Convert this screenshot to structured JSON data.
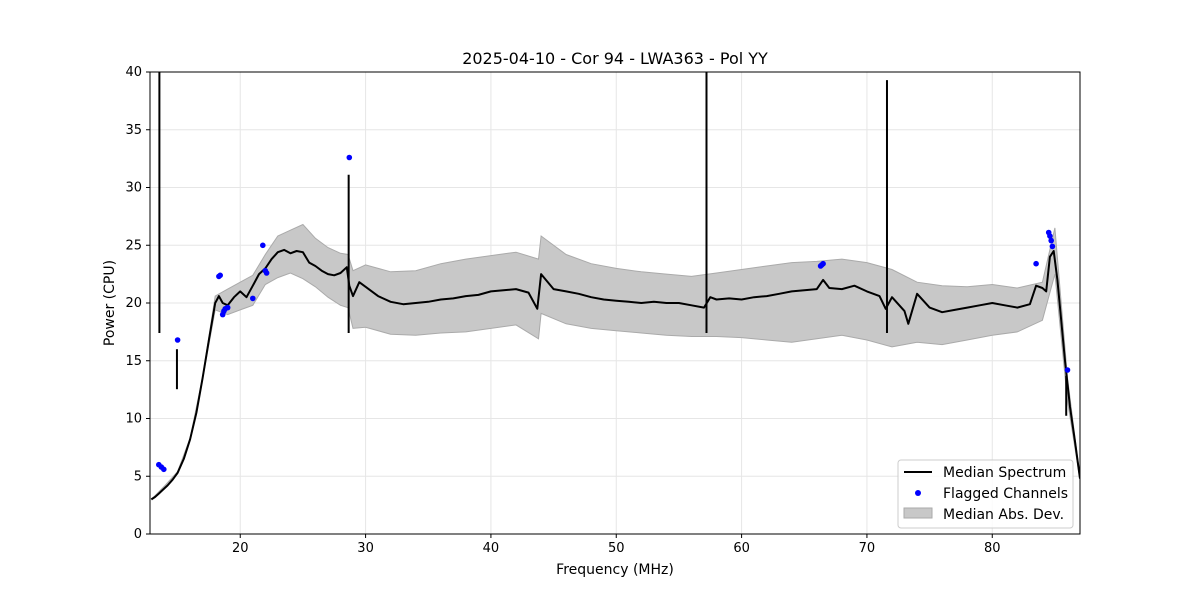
{
  "chart_data": {
    "type": "line",
    "title": "2025-04-10 - Cor 94 - LWA363 - Pol YY",
    "xlabel": "Frequency (MHz)",
    "ylabel": "Power (CPU)",
    "xlim": [
      12.8,
      87.0
    ],
    "ylim": [
      0,
      40
    ],
    "xticks": [
      20,
      30,
      40,
      50,
      60,
      70,
      80
    ],
    "yticks": [
      0,
      5,
      10,
      15,
      20,
      25,
      30,
      35,
      40
    ],
    "grid": true,
    "legend_position": "lower-right",
    "legend": [
      "Median Spectrum",
      "Flagged Channels",
      "Median Abs. Dev."
    ],
    "colors": {
      "median": "#000000",
      "flagged": "#0000ff",
      "mad_fill": "#c8c8c8",
      "mad_edge": "#aaaaaa",
      "grid": "#e6e6e6"
    },
    "series": [
      {
        "name": "Median Spectrum",
        "x": [
          12.9,
          13.2,
          13.5,
          13.8,
          14.2,
          14.6,
          15.0,
          15.5,
          16.0,
          16.5,
          17.0,
          17.5,
          18.0,
          18.3,
          18.6,
          19.0,
          19.5,
          20.0,
          20.5,
          21.0,
          21.5,
          22.0,
          22.5,
          23.0,
          23.5,
          24.0,
          24.5,
          25.0,
          25.5,
          26.0,
          26.5,
          27.0,
          27.5,
          28.0,
          28.5,
          28.7,
          29.0,
          29.5,
          30.0,
          31.0,
          32.0,
          33.0,
          34.0,
          35.0,
          36.0,
          37.0,
          38.0,
          39.0,
          40.0,
          41.0,
          42.0,
          43.0,
          43.7,
          44.0,
          45.0,
          46.0,
          47.0,
          48.0,
          49.0,
          50.0,
          51.0,
          52.0,
          53.0,
          54.0,
          55.0,
          56.0,
          57.0,
          57.5,
          58.0,
          59.0,
          60.0,
          61.0,
          62.0,
          63.0,
          64.0,
          65.0,
          66.0,
          66.5,
          67.0,
          68.0,
          69.0,
          70.0,
          71.0,
          71.5,
          72.0,
          73.0,
          73.3,
          74.0,
          75.0,
          76.0,
          77.0,
          78.0,
          79.0,
          80.0,
          81.0,
          82.0,
          83.0,
          83.5,
          84.0,
          84.3,
          84.6,
          84.9,
          85.2,
          85.5,
          85.8,
          86.2,
          86.6,
          87.0
        ],
        "y": [
          3.0,
          3.2,
          3.5,
          3.8,
          4.2,
          4.7,
          5.3,
          6.5,
          8.2,
          10.5,
          13.5,
          16.8,
          20.0,
          20.6,
          20.0,
          19.8,
          20.5,
          21.0,
          20.5,
          21.5,
          22.5,
          23.0,
          23.8,
          24.4,
          24.6,
          24.3,
          24.5,
          24.4,
          23.5,
          23.2,
          22.8,
          22.5,
          22.4,
          22.6,
          23.1,
          21.5,
          20.6,
          21.8,
          21.4,
          20.6,
          20.1,
          19.9,
          20.0,
          20.1,
          20.3,
          20.4,
          20.6,
          20.7,
          21.0,
          21.1,
          21.2,
          20.9,
          19.5,
          22.5,
          21.2,
          21.0,
          20.8,
          20.5,
          20.3,
          20.2,
          20.1,
          20.0,
          20.1,
          20.0,
          20.0,
          19.8,
          19.6,
          20.5,
          20.3,
          20.4,
          20.3,
          20.5,
          20.6,
          20.8,
          21.0,
          21.1,
          21.2,
          22.0,
          21.3,
          21.2,
          21.5,
          21.0,
          20.6,
          19.5,
          20.5,
          19.3,
          18.2,
          20.8,
          19.6,
          19.2,
          19.4,
          19.6,
          19.8,
          20.0,
          19.8,
          19.6,
          19.9,
          21.5,
          21.3,
          21.0,
          24.0,
          24.5,
          22.0,
          18.5,
          15.0,
          11.0,
          8.0,
          4.8
        ]
      },
      {
        "name": "Flagged Channels",
        "x": [
          13.5,
          13.7,
          13.9,
          15.0,
          18.3,
          18.4,
          18.6,
          18.7,
          18.8,
          19.0,
          21.0,
          21.8,
          22.0,
          22.1,
          28.7,
          66.3,
          66.4,
          66.5,
          83.5,
          84.5,
          84.6,
          84.7,
          84.8,
          86.0
        ],
        "y": [
          6.0,
          5.8,
          5.6,
          16.8,
          22.3,
          22.4,
          19.0,
          19.3,
          19.5,
          19.6,
          20.4,
          25.0,
          22.8,
          22.6,
          32.6,
          23.2,
          23.3,
          23.4,
          23.4,
          26.1,
          25.8,
          25.4,
          24.9,
          14.2
        ]
      }
    ],
    "mad_band": {
      "x": [
        13.0,
        14.0,
        15.0,
        16.0,
        17.0,
        18.0,
        19.0,
        20.0,
        21.0,
        22.0,
        23.0,
        24.0,
        25.0,
        26.0,
        27.0,
        28.0,
        28.6,
        29.0,
        30.0,
        32.0,
        34.0,
        36.0,
        38.0,
        40.0,
        42.0,
        43.8,
        44.0,
        46.0,
        48.0,
        50.0,
        52.0,
        54.0,
        56.0,
        58.0,
        60.0,
        62.0,
        64.0,
        66.0,
        68.0,
        70.0,
        72.0,
        74.0,
        76.0,
        78.0,
        80.0,
        82.0,
        84.0,
        85.0,
        86.0,
        87.0
      ],
      "upper": [
        3.1,
        4.2,
        5.4,
        8.3,
        13.6,
        20.6,
        21.2,
        21.8,
        22.4,
        24.2,
        25.8,
        26.3,
        26.8,
        25.6,
        24.8,
        24.3,
        24.2,
        22.8,
        23.3,
        22.7,
        22.8,
        23.4,
        23.8,
        24.1,
        24.4,
        23.8,
        25.8,
        24.2,
        23.4,
        23.0,
        22.7,
        22.5,
        22.3,
        22.6,
        22.9,
        23.2,
        23.5,
        23.6,
        23.8,
        23.5,
        22.9,
        21.8,
        21.5,
        21.4,
        21.6,
        21.3,
        21.8,
        26.5,
        13.5,
        4.9
      ],
      "lower": [
        3.0,
        4.0,
        5.2,
        8.1,
        13.4,
        19.4,
        19.0,
        19.4,
        19.8,
        21.6,
        22.2,
        22.6,
        22.1,
        21.4,
        20.5,
        19.8,
        19.6,
        17.8,
        17.9,
        17.3,
        17.2,
        17.4,
        17.5,
        17.8,
        18.1,
        16.9,
        19.1,
        18.2,
        17.8,
        17.6,
        17.4,
        17.2,
        17.1,
        17.1,
        17.0,
        16.8,
        16.6,
        16.9,
        17.2,
        16.8,
        16.2,
        16.6,
        16.4,
        16.8,
        17.2,
        17.5,
        18.5,
        22.5,
        11.5,
        4.7
      ]
    },
    "spikes": [
      {
        "x": 13.55,
        "y": 40.0
      },
      {
        "x": 14.95,
        "y": 16.0
      },
      {
        "x": 28.65,
        "y": 31.1
      },
      {
        "x": 57.2,
        "y": 40.0
      },
      {
        "x": 71.6,
        "y": 39.3
      },
      {
        "x": 85.9,
        "y": 13.7
      }
    ]
  }
}
